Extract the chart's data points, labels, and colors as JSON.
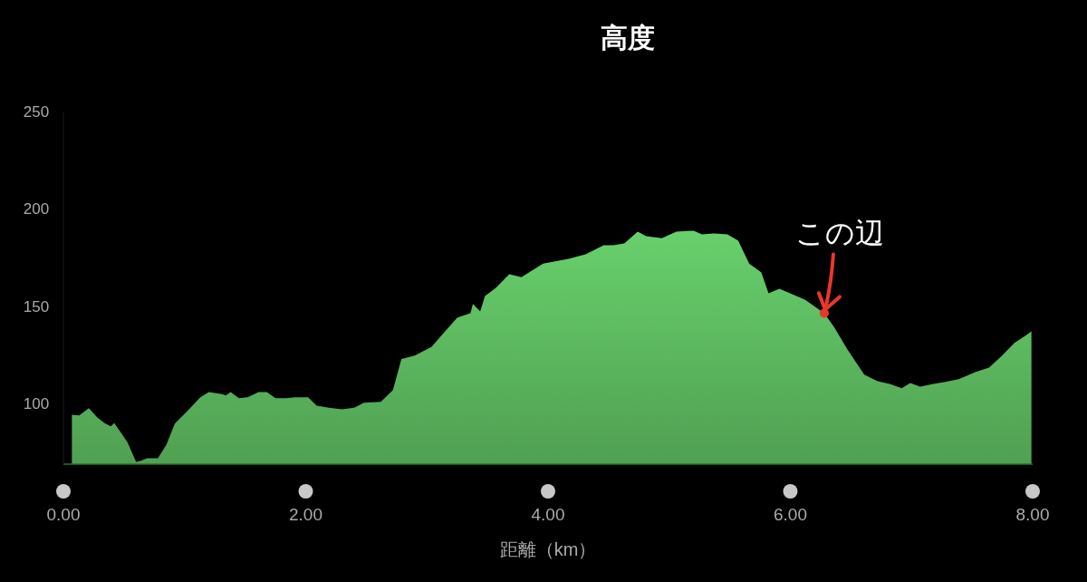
{
  "chart_data": {
    "type": "area",
    "title": "高度",
    "xlabel": "距離（km）",
    "color": "#5cb85f",
    "grid": false,
    "xlim": [
      0,
      8
    ],
    "ylim": [
      69,
      250
    ],
    "xticks": [
      {
        "value": 0,
        "label": "0.00"
      },
      {
        "value": 2,
        "label": "2.00"
      },
      {
        "value": 4,
        "label": "4.00"
      },
      {
        "value": 6,
        "label": "6.00"
      },
      {
        "value": 8,
        "label": "8.00"
      }
    ],
    "yticks": [
      100,
      150,
      200,
      250
    ],
    "x": [
      0.07,
      0.13,
      0.21,
      0.28,
      0.34,
      0.39,
      0.42,
      0.48,
      0.53,
      0.57,
      0.6,
      0.64,
      0.69,
      0.78,
      0.85,
      0.92,
      1.03,
      1.13,
      1.2,
      1.31,
      1.34,
      1.38,
      1.45,
      1.52,
      1.61,
      1.68,
      1.75,
      1.84,
      1.91,
      2.02,
      2.09,
      2.19,
      2.3,
      2.4,
      2.48,
      2.62,
      2.72,
      2.79,
      2.9,
      3.04,
      3.15,
      3.25,
      3.36,
      3.38,
      3.44,
      3.48,
      3.57,
      3.68,
      3.78,
      3.96,
      4.17,
      4.31,
      4.46,
      4.54,
      4.63,
      4.74,
      4.81,
      4.94,
      5.06,
      5.2,
      5.27,
      5.37,
      5.48,
      5.57,
      5.66,
      5.76,
      5.82,
      5.91,
      6.12,
      6.28,
      6.36,
      6.47,
      6.61,
      6.72,
      6.82,
      6.92,
      6.99,
      7.07,
      7.18,
      7.28,
      7.39,
      7.53,
      7.64,
      7.74,
      7.85,
      7.96,
      7.99
    ],
    "values": [
      94.4,
      94,
      97.7,
      93,
      90,
      88.4,
      90,
      84.7,
      80,
      74.4,
      70.2,
      70.7,
      72,
      72,
      79,
      89.8,
      96.7,
      103.3,
      106,
      105,
      104.2,
      106,
      102.8,
      103.3,
      106,
      106,
      102.8,
      102.8,
      103.3,
      103.3,
      99,
      98,
      97.2,
      98,
      100.5,
      101,
      107,
      123,
      124.7,
      129.3,
      137.2,
      144.2,
      146.5,
      151.2,
      147.4,
      155.3,
      159.5,
      166.5,
      165,
      172,
      174.4,
      176.7,
      181.4,
      181.4,
      182.3,
      188.4,
      186,
      185,
      188.4,
      188.8,
      187,
      187.4,
      187,
      183.7,
      172,
      167.4,
      156.7,
      159,
      153.5,
      146.5,
      139.5,
      128,
      115,
      111.6,
      110.2,
      108,
      110.7,
      108.8,
      110.2,
      111.2,
      112.6,
      116.3,
      118.6,
      124.2,
      131.2,
      135.8,
      137.2
    ],
    "annotations": [
      {
        "text": "この辺",
        "x": 6.28,
        "y": 146.5
      }
    ]
  }
}
